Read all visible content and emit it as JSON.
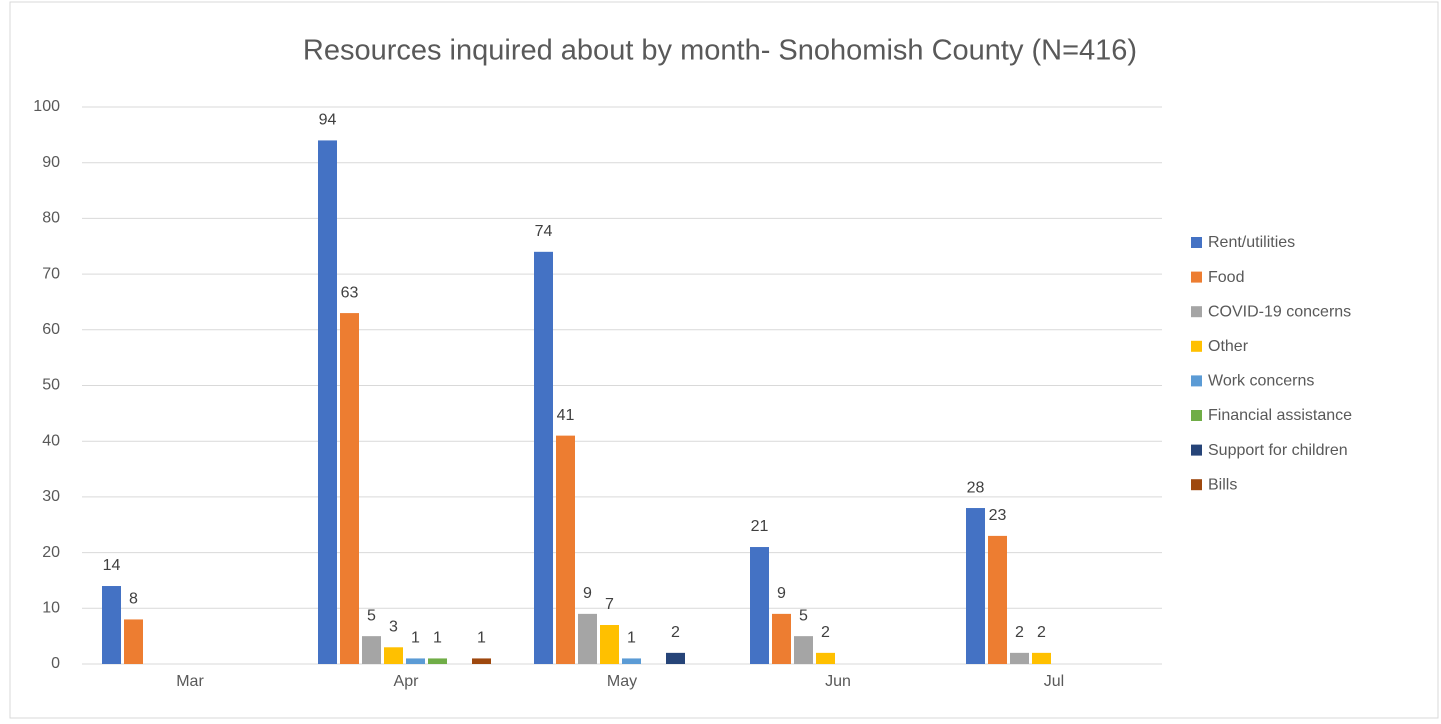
{
  "chart_data": {
    "type": "bar",
    "title": "Resources inquired about by month- Snohomish County (N=416)",
    "categories": [
      "Mar",
      "Apr",
      "May",
      "Jun",
      "Jul"
    ],
    "series": [
      {
        "name": "Rent/utilities",
        "color": "#4472c4",
        "values": [
          14,
          94,
          74,
          21,
          28
        ]
      },
      {
        "name": "Food",
        "color": "#ed7d31",
        "values": [
          8,
          63,
          41,
          9,
          23
        ]
      },
      {
        "name": "COVID-19 concerns",
        "color": "#a5a5a5",
        "values": [
          null,
          5,
          9,
          5,
          2
        ]
      },
      {
        "name": "Other",
        "color": "#ffc000",
        "values": [
          null,
          3,
          7,
          2,
          2
        ]
      },
      {
        "name": "Work concerns",
        "color": "#5b9bd5",
        "values": [
          null,
          1,
          1,
          null,
          null
        ]
      },
      {
        "name": "Financial assistance",
        "color": "#70ad47",
        "values": [
          null,
          1,
          null,
          null,
          null
        ]
      },
      {
        "name": "Support for children",
        "color": "#264478",
        "values": [
          null,
          null,
          2,
          null,
          null
        ]
      },
      {
        "name": "Bills",
        "color": "#9e480e",
        "values": [
          null,
          1,
          null,
          null,
          null
        ]
      }
    ],
    "ylim": [
      0,
      100
    ],
    "yticks": [
      0,
      10,
      20,
      30,
      40,
      50,
      60,
      70,
      80,
      90,
      100
    ],
    "grid": true,
    "legend": "right"
  }
}
